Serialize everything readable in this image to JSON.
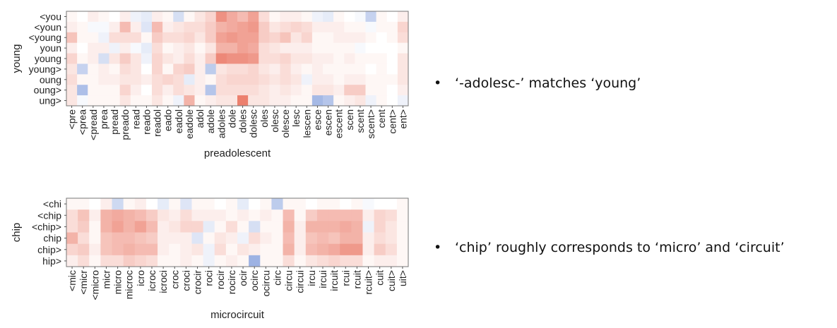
{
  "chart_data": [
    {
      "type": "heatmap",
      "ylabel": "young",
      "xlabel": "preadolescent",
      "rows": [
        "<you",
        "<youn",
        "<young",
        "youn",
        "young",
        "young>",
        "oung",
        "oung>",
        "ung>"
      ],
      "cols": [
        "<pre",
        "<prea",
        "<pread",
        "prea",
        "pread",
        "preado",
        "read",
        "reado",
        "readol",
        "eado",
        "eadol",
        "eadole",
        "adol",
        "adole",
        "adoles",
        "dole",
        "doles",
        "dolesc",
        "oles",
        "olesc",
        "olesce",
        "lesc",
        "lescen",
        "esce",
        "escen",
        "escent",
        "scen",
        "scent",
        "scent>",
        "cent",
        "cent>",
        "ent>"
      ],
      "values": [
        [
          0.05,
          0.0,
          0.1,
          0.05,
          0.0,
          0.1,
          -0.1,
          -0.15,
          0.1,
          0.05,
          -0.25,
          0.05,
          0.15,
          0.25,
          0.65,
          0.5,
          0.4,
          0.55,
          0.2,
          0.05,
          0.1,
          0.1,
          0.05,
          -0.1,
          -0.15,
          0.05,
          0.0,
          -0.05,
          -0.35,
          0.05,
          0.0,
          0.1
        ],
        [
          0.1,
          0.05,
          -0.05,
          -0.05,
          0.1,
          0.4,
          0.1,
          -0.2,
          0.4,
          0.1,
          0.15,
          0.2,
          0.2,
          0.3,
          0.45,
          0.5,
          0.55,
          0.6,
          0.3,
          0.15,
          0.2,
          0.25,
          0.2,
          0.1,
          0.1,
          0.1,
          0.05,
          0.05,
          -0.05,
          0.05,
          0.05,
          0.25
        ],
        [
          0.35,
          0.05,
          0.05,
          -0.1,
          0.2,
          0.2,
          0.2,
          0.05,
          0.3,
          0.2,
          0.2,
          0.25,
          0.15,
          0.3,
          0.55,
          0.6,
          0.55,
          0.55,
          0.3,
          0.25,
          0.35,
          0.15,
          0.25,
          0.05,
          0.05,
          0.1,
          0.1,
          0.1,
          0.05,
          0.0,
          0.05,
          0.2
        ],
        [
          0.1,
          0.0,
          0.1,
          0.1,
          -0.1,
          0.1,
          -0.05,
          -0.15,
          0.2,
          0.05,
          0.1,
          0.15,
          0.05,
          0.15,
          0.45,
          0.45,
          0.55,
          0.5,
          0.2,
          0.15,
          0.1,
          0.1,
          0.1,
          0.05,
          0.05,
          0.05,
          0.05,
          -0.05,
          0.0,
          0.0,
          0.0,
          0.05
        ],
        [
          0.25,
          0.05,
          0.1,
          -0.25,
          0.15,
          0.3,
          0.15,
          -0.1,
          0.25,
          0.15,
          0.1,
          0.2,
          0.1,
          0.3,
          0.7,
          0.65,
          0.65,
          0.6,
          0.2,
          0.2,
          0.25,
          0.15,
          0.15,
          0.1,
          0.1,
          0.05,
          0.1,
          0.05,
          0.05,
          0.05,
          0.0,
          0.15
        ],
        [
          0.15,
          -0.35,
          0.05,
          0.1,
          0.05,
          0.2,
          0.15,
          0.0,
          0.25,
          0.05,
          0.25,
          0.3,
          0.1,
          -0.4,
          0.15,
          0.2,
          0.2,
          0.25,
          0.15,
          0.1,
          0.2,
          0.1,
          0.05,
          0.1,
          0.05,
          0.05,
          0.05,
          0.05,
          0.0,
          0.05,
          0.0,
          0.15
        ],
        [
          0.2,
          0.05,
          0.05,
          0.1,
          0.1,
          0.15,
          0.15,
          0.1,
          0.2,
          0.25,
          0.2,
          -0.15,
          0.1,
          0.05,
          0.2,
          0.25,
          0.25,
          0.25,
          0.2,
          0.15,
          0.2,
          0.15,
          -0.1,
          0.1,
          0.1,
          0.05,
          0.1,
          0.1,
          0.05,
          0.05,
          0.05,
          0.15
        ],
        [
          0.15,
          -0.5,
          0.05,
          0.05,
          0.05,
          0.25,
          0.1,
          0.0,
          0.2,
          0.1,
          0.2,
          0.15,
          0.1,
          -0.45,
          0.2,
          0.2,
          0.2,
          0.2,
          0.15,
          0.1,
          0.15,
          0.1,
          0.05,
          0.15,
          0.15,
          0.1,
          0.3,
          0.3,
          0.05,
          0.05,
          0.0,
          0.1
        ],
        [
          0.15,
          -0.05,
          0.05,
          0.05,
          0.05,
          0.15,
          0.05,
          0.05,
          0.15,
          0.05,
          -0.1,
          0.45,
          0.05,
          0.1,
          0.15,
          0.15,
          0.75,
          0.15,
          0.15,
          0.1,
          0.1,
          0.05,
          0.05,
          -0.55,
          -0.45,
          0.05,
          0.1,
          0.15,
          -0.1,
          0.05,
          0.0,
          -0.1
        ]
      ]
    },
    {
      "type": "heatmap",
      "ylabel": "chip",
      "xlabel": "microcircuit",
      "rows": [
        "<chi",
        "<chip",
        "<chip>",
        "chip",
        "chip>",
        "hip>"
      ],
      "cols": [
        "<mic",
        "<micr",
        "<micro",
        "micr",
        "micro",
        "microc",
        "icro",
        "icroc",
        "icroci",
        "croc",
        "croci",
        "crocir",
        "roci",
        "rocir",
        "rocirc",
        "ocir",
        "ocirc",
        "ocircu",
        "circ",
        "circu",
        "circui",
        "ircu",
        "ircui",
        "ircuit",
        "rcui",
        "rcuit",
        "rcuit>",
        "cuit",
        "cuit>",
        "uit>"
      ],
      "values": [
        [
          0.05,
          0.05,
          0.0,
          0.1,
          -0.3,
          0.05,
          0.1,
          0.0,
          -0.15,
          0.05,
          -0.2,
          0.05,
          0.05,
          0.0,
          0.05,
          -0.15,
          0.0,
          0.05,
          -0.4,
          0.05,
          0.05,
          0.0,
          0.05,
          0.05,
          0.0,
          0.05,
          -0.05,
          0.0,
          0.0,
          0.05
        ],
        [
          0.2,
          0.35,
          0.1,
          0.45,
          0.5,
          0.45,
          0.4,
          0.3,
          0.15,
          0.1,
          0.2,
          0.1,
          0.1,
          0.1,
          0.05,
          0.1,
          0.05,
          0.1,
          0.05,
          0.4,
          0.05,
          0.3,
          0.4,
          0.4,
          0.4,
          0.4,
          0.1,
          0.25,
          0.2,
          0.05
        ],
        [
          0.2,
          0.3,
          0.05,
          0.45,
          0.55,
          0.45,
          0.55,
          0.4,
          0.1,
          0.15,
          0.25,
          0.25,
          -0.15,
          0.05,
          0.2,
          0.05,
          -0.25,
          0.05,
          0.05,
          0.45,
          0.1,
          0.45,
          0.45,
          0.45,
          0.5,
          0.45,
          -0.1,
          0.25,
          0.15,
          0.05
        ],
        [
          0.45,
          0.2,
          0.05,
          0.35,
          0.4,
          0.4,
          0.35,
          0.3,
          0.1,
          0.1,
          0.1,
          -0.2,
          0.05,
          0.15,
          0.1,
          -0.1,
          0.2,
          0.1,
          0.05,
          0.4,
          0.1,
          0.35,
          0.4,
          0.35,
          0.45,
          0.45,
          0.1,
          0.2,
          0.15,
          0.05
        ],
        [
          0.25,
          0.3,
          0.1,
          0.35,
          0.4,
          0.45,
          0.4,
          0.4,
          0.1,
          0.05,
          0.1,
          0.15,
          -0.1,
          0.2,
          0.05,
          0.15,
          0.1,
          0.05,
          0.05,
          0.45,
          0.1,
          0.4,
          0.45,
          0.5,
          0.6,
          0.6,
          0.1,
          0.3,
          0.2,
          0.05
        ],
        [
          0.1,
          0.2,
          0.05,
          0.2,
          0.2,
          0.3,
          0.25,
          0.2,
          0.05,
          0.05,
          0.1,
          0.05,
          -0.1,
          0.05,
          0.1,
          0.05,
          -0.6,
          0.05,
          0.05,
          0.2,
          0.05,
          0.15,
          0.2,
          0.25,
          0.2,
          0.2,
          0.05,
          0.1,
          0.1,
          0.05
        ]
      ]
    }
  ],
  "annotations": [
    {
      "bullet": "•",
      "text": "‘-adolesc-’ matches ‘young’"
    },
    {
      "bullet": "•",
      "text": "‘chip’ roughly corresponds to ‘micro’ and ‘circuit’"
    }
  ],
  "colors": {
    "positive": "#e5553e",
    "negative": "#5b7fd0",
    "neutral": "#ffffff",
    "frame": "#777777"
  }
}
